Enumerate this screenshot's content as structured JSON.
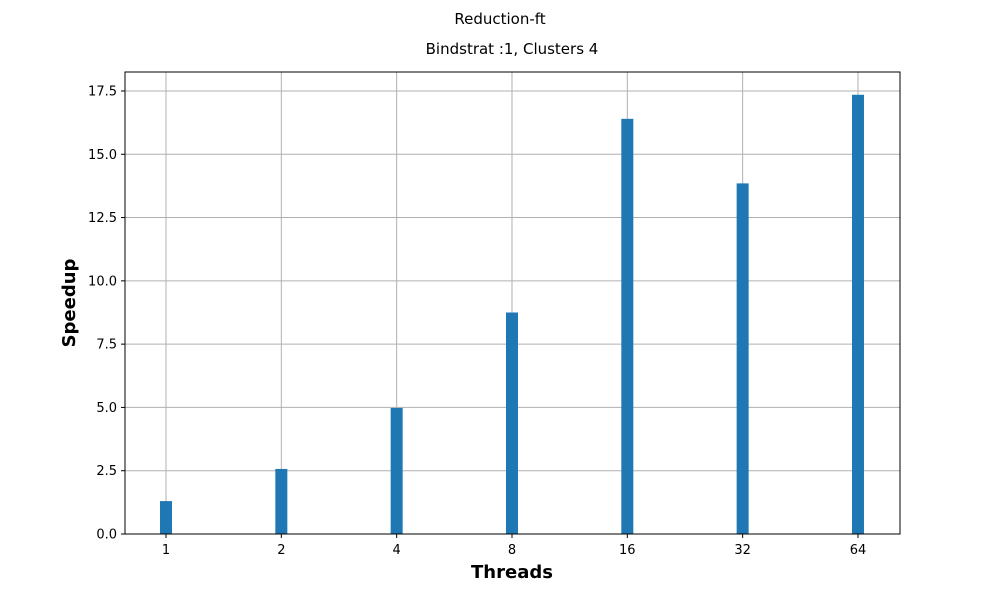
{
  "chart_data": {
    "type": "bar",
    "suptitle": "Reduction-ft",
    "title": "Bindstrat :1, Clusters 4",
    "xlabel": "Threads",
    "ylabel": "Speedup",
    "categories": [
      "1",
      "2",
      "4",
      "8",
      "16",
      "32",
      "64"
    ],
    "values": [
      1.3,
      2.57,
      4.98,
      8.75,
      16.4,
      13.85,
      17.35
    ],
    "ylim": [
      0,
      18.25
    ],
    "yticks": [
      "0.0",
      "2.5",
      "5.0",
      "7.5",
      "10.0",
      "12.5",
      "15.0",
      "17.5"
    ],
    "grid": true,
    "bar_color": "#1f77b4",
    "legend": "none"
  }
}
